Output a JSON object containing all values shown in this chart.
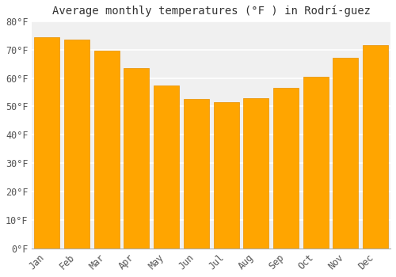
{
  "title": "Average monthly temperatures (°F ) in Rodrí-guez",
  "months": [
    "Jan",
    "Feb",
    "Mar",
    "Apr",
    "May",
    "Jun",
    "Jul",
    "Aug",
    "Sep",
    "Oct",
    "Nov",
    "Dec"
  ],
  "values": [
    74.5,
    73.5,
    69.5,
    63.5,
    57.5,
    52.5,
    51.5,
    53.0,
    56.5,
    60.5,
    67.0,
    71.5
  ],
  "bar_color_top": "#FFA500",
  "bar_color_bottom": "#FFB732",
  "bar_edge_color": "#E89000",
  "background_color": "#ffffff",
  "plot_bg_color": "#f0f0f0",
  "grid_color": "#ffffff",
  "ylim": [
    0,
    80
  ],
  "ytick_step": 10,
  "title_fontsize": 10,
  "tick_fontsize": 8.5,
  "font_family": "monospace"
}
